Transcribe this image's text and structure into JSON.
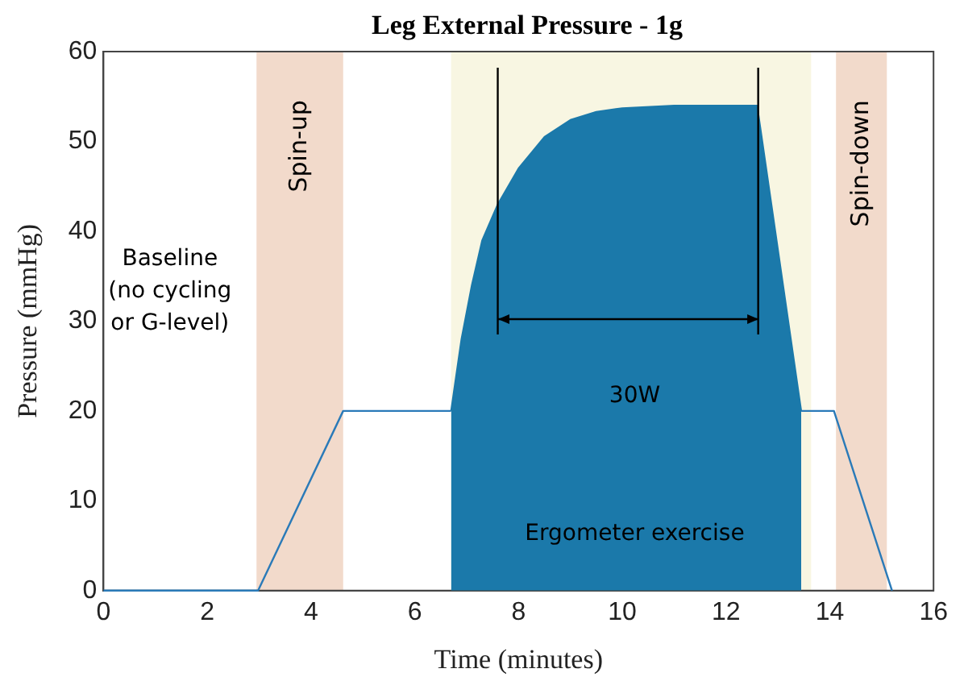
{
  "chart_data": {
    "type": "line",
    "title": "Leg External Pressure - 1g",
    "xlabel": "Time (minutes)",
    "ylabel": "Pressure (mmHg)",
    "xlim": [
      0,
      16
    ],
    "xticks": [
      0,
      2,
      4,
      6,
      8,
      10,
      12,
      14,
      16
    ],
    "ylim": [
      0,
      60
    ],
    "yticks": [
      0,
      10,
      20,
      30,
      40,
      50,
      60
    ],
    "grid": false,
    "legend": false,
    "marker": "none",
    "line_style": "solid",
    "series": [
      {
        "color": "#2a7ab8",
        "x": [
          0,
          2.98,
          4.62,
          6.7,
          10,
          13.45,
          14.08,
          15.2
        ],
        "values": [
          0,
          0,
          20,
          20,
          null,
          20,
          20,
          0
        ]
      },
      {
        "type": "area",
        "color": "#1b79aa",
        "x": [
          6.7,
          6.9,
          7.1,
          7.3,
          7.6,
          8.0,
          8.5,
          9.0,
          9.5,
          10,
          11,
          12.6,
          13.45
        ],
        "values": [
          20,
          28,
          34,
          39,
          43,
          47,
          50.5,
          52.4,
          53.3,
          53.7,
          54,
          54,
          20
        ]
      }
    ],
    "bands": [
      {
        "axis": "x",
        "from": 2.95,
        "to": 4.62,
        "label": "Spin-up",
        "color": "#f2dacb"
      },
      {
        "axis": "x",
        "from": 6.7,
        "to": 13.64,
        "color": "#f8f6e2"
      },
      {
        "axis": "x",
        "from": 14.12,
        "to": 15.1,
        "label": "Spin-down",
        "color": "#f2dacb"
      }
    ],
    "ref_lines": [
      {
        "axis": "x",
        "value": 7.6,
        "color": "#000000"
      },
      {
        "axis": "x",
        "value": 12.62,
        "color": "#000000"
      }
    ],
    "annotations": [
      "Baseline (no cycling or G-level)",
      "30W",
      "Ergometer exercise"
    ]
  }
}
